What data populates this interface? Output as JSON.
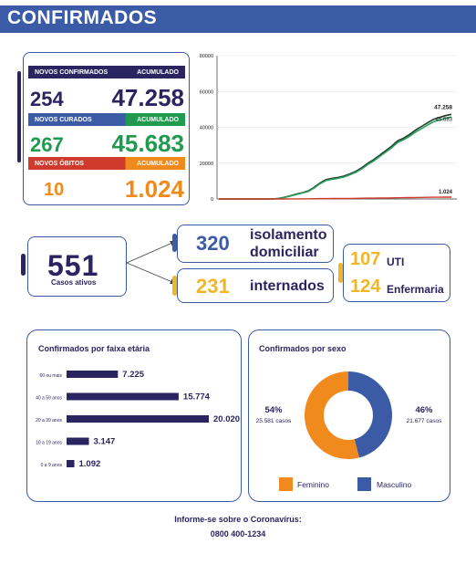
{
  "header": {
    "title": "CONFIRMADOS"
  },
  "stats": {
    "confirmados": {
      "label": "NOVOS CONFIRMADOS",
      "acumulado_label": "ACUMULADO",
      "novos": "254",
      "acumulado": "47.258"
    },
    "curados": {
      "label": "NOVOS CURADOS",
      "acumulado_label": "ACUMULADO",
      "novos": "267",
      "acumulado": "45.683"
    },
    "obitos": {
      "label": "NOVOS ÓBITOS",
      "acumulado_label": "ACUMULADO",
      "novos": "10",
      "acumulado": "1.024"
    }
  },
  "colors": {
    "navy": "#2a2560",
    "blue": "#3b5ba7",
    "green": "#1f9a4f",
    "orange": "#f08a1c",
    "red": "#cf3a2c",
    "yellow": "#f0b625"
  },
  "active": {
    "number": "551",
    "label": "Casos ativos"
  },
  "isolamento": {
    "number": "320",
    "label_line1": "isolamento",
    "label_line2": "domiciliar"
  },
  "internados": {
    "number": "231",
    "label": "internados"
  },
  "uti": {
    "number": "107",
    "label": "UTI"
  },
  "enfermaria": {
    "number": "124",
    "label": "Enfermaria"
  },
  "age_panel": {
    "title": "Confirmados por faixa etária"
  },
  "sex_panel": {
    "title": "Confirmados por sexo",
    "feminino_legend": "Feminino",
    "masculino_legend": "Masculino"
  },
  "footer": {
    "line1": "Informe-se sobre o Coronavírus:",
    "line2": "0800 400-1234"
  },
  "chart_data": [
    {
      "type": "line",
      "ylim": [
        0,
        80000
      ],
      "y_ticks": [
        "0",
        "20000",
        "40000",
        "60000",
        "80000"
      ],
      "x_points": 40,
      "series": [
        {
          "color": "#1f3d2b",
          "end_label": "47.258",
          "values": [
            0,
            0,
            0,
            0,
            0,
            0,
            0,
            0,
            0,
            0,
            300,
            900,
            1800,
            2700,
            3500,
            4500,
            6500,
            9000,
            10800,
            11500,
            12000,
            12800,
            14000,
            15500,
            17500,
            20000,
            22000,
            24500,
            27000,
            29500,
            32500,
            34000,
            36000,
            38500,
            40500,
            42500,
            44500,
            45500,
            46500,
            47258
          ]
        },
        {
          "color": "#2a9d5a",
          "end_label": "45.683",
          "values": [
            0,
            0,
            0,
            0,
            0,
            0,
            0,
            0,
            0,
            0,
            250,
            800,
            1600,
            2500,
            3300,
            4200,
            6100,
            8600,
            10300,
            11000,
            11500,
            12300,
            13500,
            15000,
            16800,
            19300,
            21300,
            23800,
            26200,
            28700,
            31600,
            33100,
            35000,
            37400,
            39300,
            41200,
            43100,
            44100,
            45000,
            45683
          ]
        },
        {
          "color": "#cf3a2c",
          "end_label": "1.024",
          "values": [
            0,
            0,
            0,
            0,
            0,
            0,
            0,
            0,
            0,
            0,
            5,
            15,
            30,
            50,
            70,
            90,
            130,
            180,
            220,
            250,
            270,
            300,
            330,
            360,
            400,
            440,
            480,
            530,
            580,
            630,
            680,
            720,
            770,
            820,
            870,
            910,
            950,
            980,
            1000,
            1024
          ]
        }
      ]
    },
    {
      "type": "bar",
      "orientation": "horizontal",
      "categories": [
        "60 ou mais",
        "40 a 59 anos",
        "20 a 39 anos",
        "10 a 19 anos",
        "0 a 9 anos"
      ],
      "values": [
        7225,
        15774,
        20020,
        3147,
        1092
      ],
      "value_labels": [
        "7.225",
        "15.774",
        "20.020",
        "3.147",
        "1.092"
      ],
      "color": "#2a2560"
    },
    {
      "type": "pie",
      "style": "donut",
      "slices": [
        {
          "name": "Feminino",
          "percent": 54,
          "percent_label": "54%",
          "count_label": "25.581 casos",
          "color": "#f08a1c"
        },
        {
          "name": "Masculino",
          "percent": 46,
          "percent_label": "46%",
          "count_label": "21.677 casos",
          "color": "#3b5ba7"
        }
      ]
    }
  ]
}
